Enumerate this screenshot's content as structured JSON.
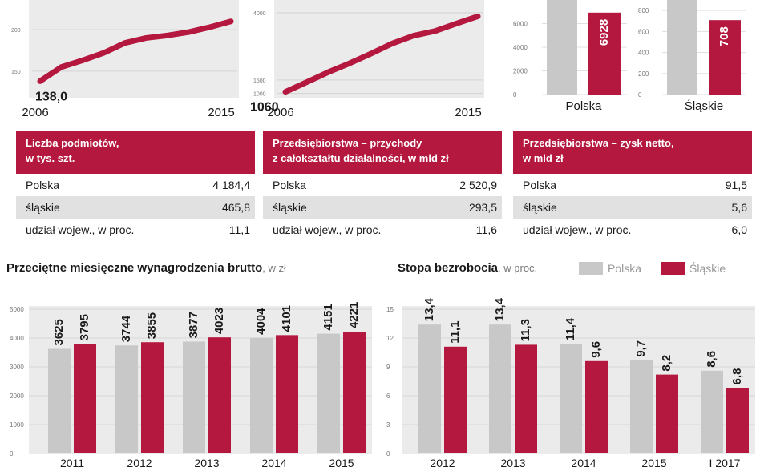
{
  "colors": {
    "crimson": "#b5183f",
    "grey": "#c8c8c8",
    "panel": "#ebebeb"
  },
  "top_line_1": {
    "start_value_label": "138,0",
    "x_start_label": "2006",
    "x_end_label": "2015",
    "y_ticks": [
      "200",
      "150"
    ]
  },
  "top_line_2": {
    "start_value_label": "1060",
    "x_start_label": "2006",
    "x_end_label": "2015",
    "y_ticks": [
      "4000",
      "1500",
      "1000"
    ]
  },
  "top_bars": {
    "polska": {
      "label": "Polska",
      "value_label": "6928",
      "y_ticks": [
        "6000",
        "4000",
        "2000",
        "0"
      ]
    },
    "slaskie": {
      "label": "Śląskie",
      "value_label": "708",
      "y_ticks": [
        "800",
        "600",
        "400",
        "200",
        "0"
      ]
    }
  },
  "info_boxes": [
    {
      "header": [
        "Liczba podmiotów,",
        "w tys. szt."
      ],
      "rows": [
        {
          "label": "Polska",
          "value": "4 184,4"
        },
        {
          "label": "śląskie",
          "value": "465,8"
        },
        {
          "label": "udział wojew., w proc.",
          "value": "11,1"
        }
      ]
    },
    {
      "header": [
        "Przedsiębiorstwa – przychody",
        "z całokształtu działalności, w mld zł"
      ],
      "rows": [
        {
          "label": "Polska",
          "value": "2 520,9"
        },
        {
          "label": "śląskie",
          "value": "293,5"
        },
        {
          "label": "udział wojew., w proc.",
          "value": "11,6"
        }
      ]
    },
    {
      "header": [
        "Przedsiębiorstwa – zysk netto,",
        "w mld zł"
      ],
      "rows": [
        {
          "label": "Polska",
          "value": "91,5"
        },
        {
          "label": "śląskie",
          "value": "5,6"
        },
        {
          "label": "udział wojew., w proc.",
          "value": "6,0"
        }
      ]
    }
  ],
  "wages_title": {
    "text": "Przeciętne miesięczne wynagrodzenia brutto",
    "unit": ", w zł"
  },
  "unemp_title": {
    "text": "Stopa bezrobocia",
    "unit": ", w proc."
  },
  "legend": {
    "polska": "Polska",
    "slaskie": "Śląskie"
  },
  "chart_data": [
    {
      "type": "line",
      "x": [
        2006,
        2007,
        2008,
        2009,
        2010,
        2011,
        2012,
        2013,
        2014,
        2015
      ],
      "values": [
        138.0,
        155,
        163,
        172,
        184,
        190,
        193,
        197,
        203,
        210
      ],
      "ylim": [
        120,
        230
      ],
      "yticks": [
        150,
        200
      ],
      "xlabels": [
        "2006",
        "2015"
      ]
    },
    {
      "type": "line",
      "x": [
        2006,
        2007,
        2008,
        2009,
        2010,
        2011,
        2012,
        2013,
        2014,
        2015
      ],
      "values": [
        1060,
        1420,
        1790,
        2120,
        2480,
        2860,
        3150,
        3320,
        3600,
        3870
      ],
      "ylim": [
        900,
        4300
      ],
      "yticks": [
        1000,
        1500,
        4000
      ],
      "xlabels": [
        "2006",
        "2015"
      ]
    },
    {
      "type": "bar",
      "categories": [
        "Polska"
      ],
      "series": [
        {
          "name": "Polska",
          "values": [
            6928
          ]
        }
      ],
      "ylim": [
        0,
        8000
      ]
    },
    {
      "type": "bar",
      "categories": [
        "Śląskie"
      ],
      "series": [
        {
          "name": "Śląskie",
          "values": [
            708
          ]
        }
      ],
      "ylim": [
        0,
        900
      ]
    },
    {
      "type": "bar",
      "title": "Przeciętne miesięczne wynagrodzenia brutto",
      "categories": [
        "2011",
        "2012",
        "2013",
        "2014",
        "2015"
      ],
      "series": [
        {
          "name": "Polska",
          "values": [
            3625,
            3744,
            3877,
            4004,
            4151
          ],
          "labels": [
            "3625",
            "3744",
            "3877",
            "4004",
            "4151"
          ]
        },
        {
          "name": "Śląskie",
          "values": [
            3795,
            3855,
            4023,
            4101,
            4221
          ],
          "labels": [
            "3795",
            "3855",
            "4023",
            "4101",
            "4221"
          ]
        }
      ],
      "ylim": [
        0,
        5000
      ],
      "yticks": [
        0,
        1000,
        2000,
        3000,
        4000,
        5000
      ]
    },
    {
      "type": "bar",
      "title": "Stopa bezrobocia",
      "categories": [
        "2012",
        "2013",
        "2014",
        "2015",
        "I 2017"
      ],
      "series": [
        {
          "name": "Polska",
          "values": [
            13.4,
            13.4,
            11.4,
            9.7,
            8.6
          ],
          "labels": [
            "13,4",
            "13,4",
            "11,4",
            "9,7",
            "8,6"
          ]
        },
        {
          "name": "Śląskie",
          "values": [
            11.1,
            11.3,
            9.6,
            8.2,
            6.8
          ],
          "labels": [
            "11,1",
            "11,3",
            "9,6",
            "8,2",
            "6,8"
          ]
        }
      ],
      "ylim": [
        0,
        15
      ],
      "yticks": [
        0,
        3,
        6,
        9,
        12,
        15
      ]
    }
  ]
}
